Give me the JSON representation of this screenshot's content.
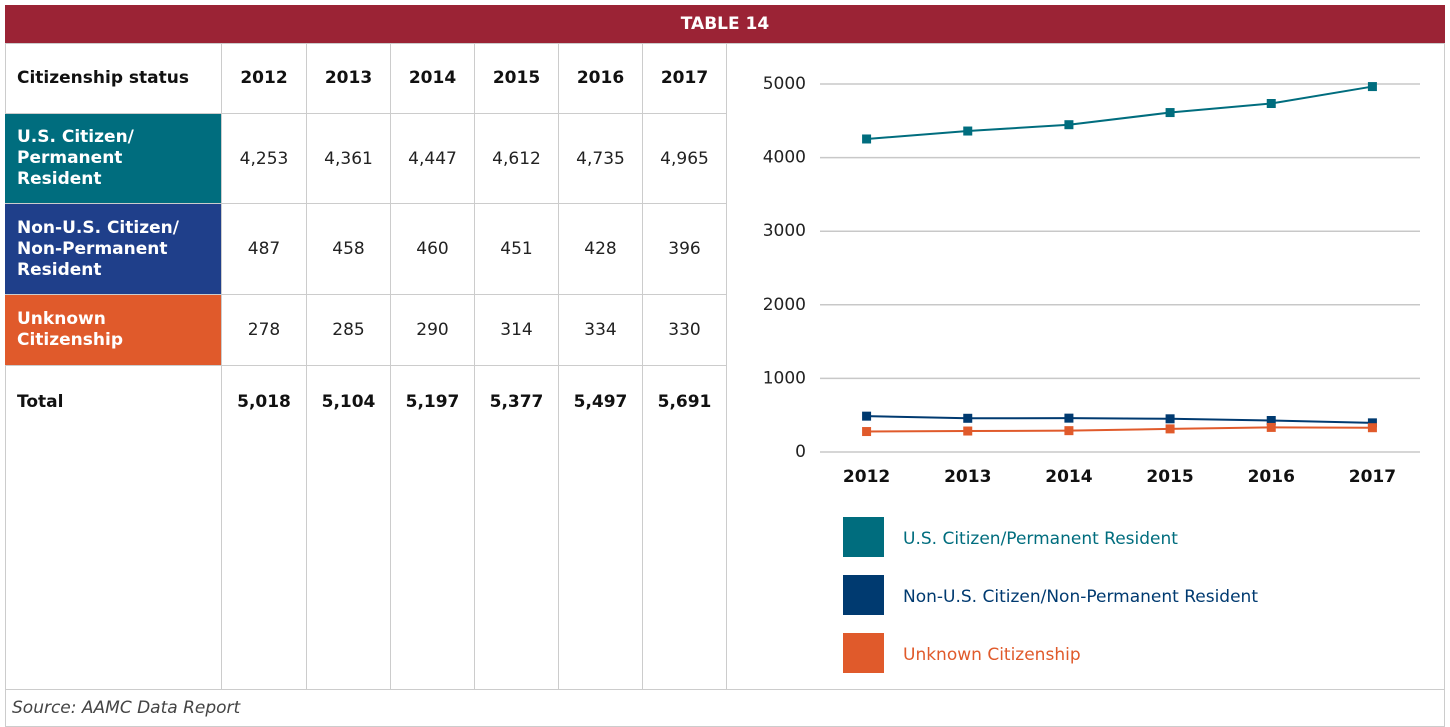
{
  "title": "TABLE 14",
  "table": {
    "header": [
      "Citizenship status",
      "2012",
      "2013",
      "2014",
      "2015",
      "2016",
      "2017"
    ],
    "rows": [
      [
        "U.S. Citizen/ Permanent Resident",
        "4,253",
        "4,361",
        "4,447",
        "4,612",
        "4,735",
        "4,965"
      ],
      [
        "Non-U.S. Citizen/ Non-Permanent Resident",
        "487",
        "458",
        "460",
        "451",
        "428",
        "396"
      ],
      [
        "Unknown Citizenship",
        "278",
        "285",
        "290",
        "314",
        "334",
        "330"
      ],
      [
        "Total",
        "5,018",
        "5,104",
        "5,197",
        "5,377",
        "5,497",
        "5,691"
      ]
    ],
    "row_colors": [
      "#006d7e",
      "#1f3f8a",
      "#e05a2b",
      null
    ]
  },
  "source": "Source: AAMC Data Report",
  "chart_data": {
    "type": "line",
    "categories": [
      "2012",
      "2013",
      "2014",
      "2015",
      "2016",
      "2017"
    ],
    "series": [
      {
        "name": "U.S. Citizen/Permanent Resident",
        "color": "#006d7e",
        "values": [
          4253,
          4361,
          4447,
          4612,
          4735,
          4965
        ]
      },
      {
        "name": "Non-U.S. Citizen/Non-Permanent Resident",
        "color": "#003a70",
        "values": [
          487,
          458,
          460,
          451,
          428,
          396
        ]
      },
      {
        "name": "Unknown Citizenship",
        "color": "#e05a2b",
        "values": [
          278,
          285,
          290,
          314,
          334,
          330
        ]
      }
    ],
    "ylim": [
      0,
      5000
    ],
    "yticks": [
      0,
      1000,
      2000,
      3000,
      4000,
      5000
    ],
    "grid": true
  }
}
